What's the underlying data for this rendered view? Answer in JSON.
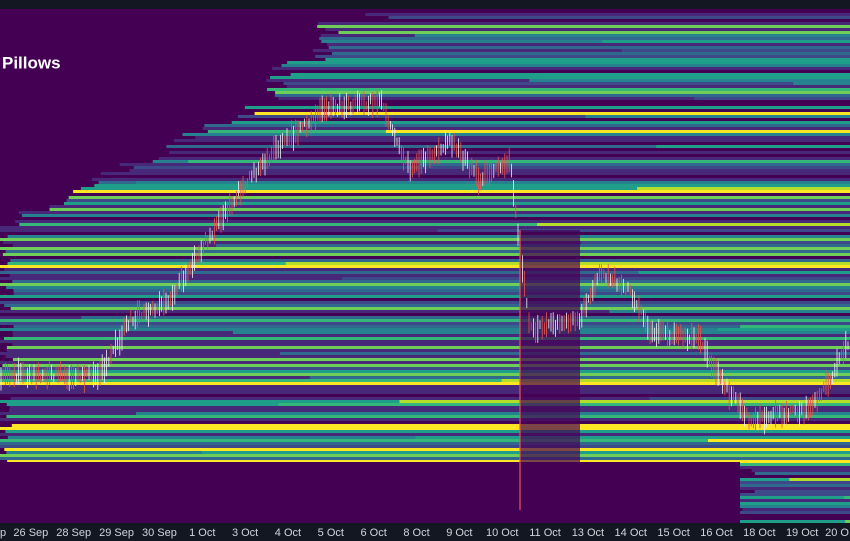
{
  "chart_data": {
    "type": "heatmap",
    "title": "Pillows",
    "categories": [
      "p",
      "26 Sep",
      "28 Sep",
      "29 Sep",
      "30 Sep",
      "1 Oct",
      "3 Oct",
      "4 Oct",
      "5 Oct",
      "6 Oct",
      "8 Oct",
      "9 Oct",
      "10 Oct",
      "11 Oct",
      "13 Oct",
      "14 Oct",
      "15 Oct",
      "16 Oct",
      "18 Oct",
      "19 Oct",
      "20 O"
    ]
  }
}
